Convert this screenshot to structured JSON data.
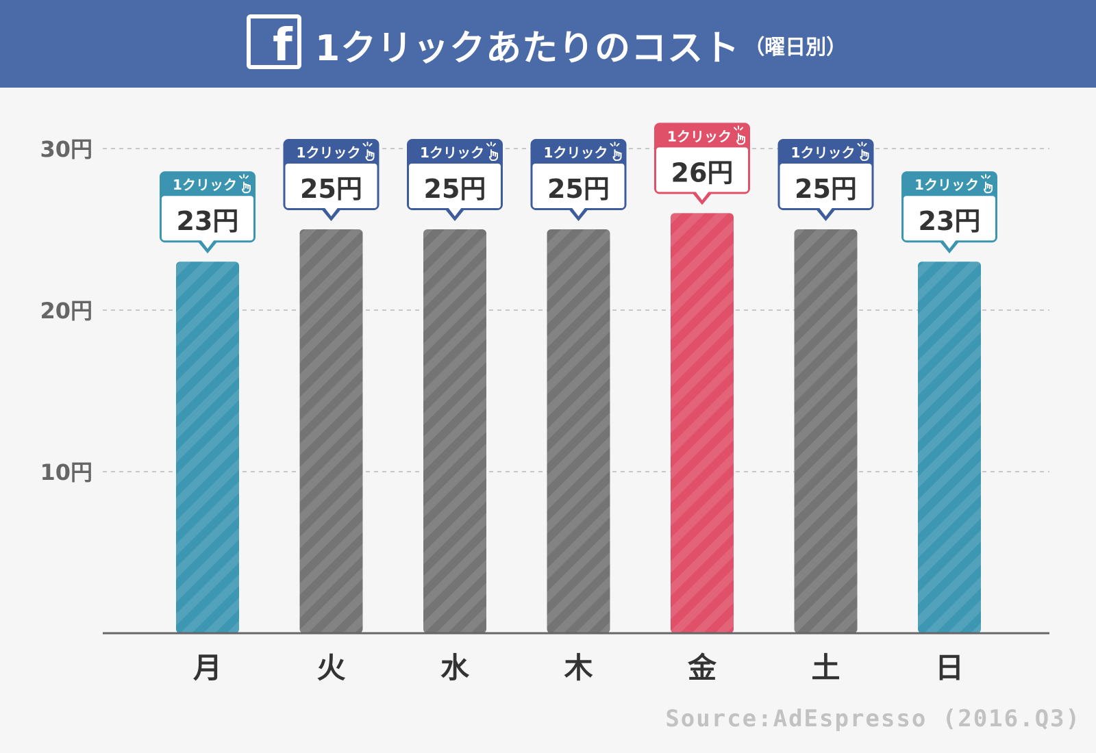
{
  "header": {
    "logo_letter": "f",
    "title": "1クリックあたりのコスト",
    "subtitle": "（曜日別）"
  },
  "colors": {
    "header_bg": "#4b6aa8",
    "teal": "#3d97b3",
    "teal_label": "#3b95b0",
    "gray": "#747474",
    "navy_label": "#3d5c9d",
    "red": "#e05068",
    "red_label": "#e05068",
    "grid": "#c8c8c8",
    "axis": "#666666"
  },
  "chart_data": {
    "type": "bar",
    "categories": [
      "月",
      "火",
      "水",
      "木",
      "金",
      "土",
      "日"
    ],
    "values": [
      23,
      25,
      25,
      25,
      26,
      25,
      23
    ],
    "value_labels": [
      "23円",
      "25円",
      "25円",
      "25円",
      "26円",
      "25円",
      "23円"
    ],
    "callout_caption": "1クリック",
    "callout_icon": "tap-hand-icon",
    "bar_colors": [
      "teal",
      "gray",
      "gray",
      "gray",
      "red",
      "gray",
      "teal"
    ],
    "label_colors": [
      "teal_label",
      "navy_label",
      "navy_label",
      "navy_label",
      "red_label",
      "navy_label",
      "teal_label"
    ],
    "yticks": [
      10,
      20,
      30
    ],
    "ytick_labels": [
      "10円",
      "20円",
      "30円"
    ],
    "ylim": [
      0,
      30
    ],
    "grid": true
  },
  "footer": {
    "source": "Source:AdEspresso (2016.Q3)"
  }
}
